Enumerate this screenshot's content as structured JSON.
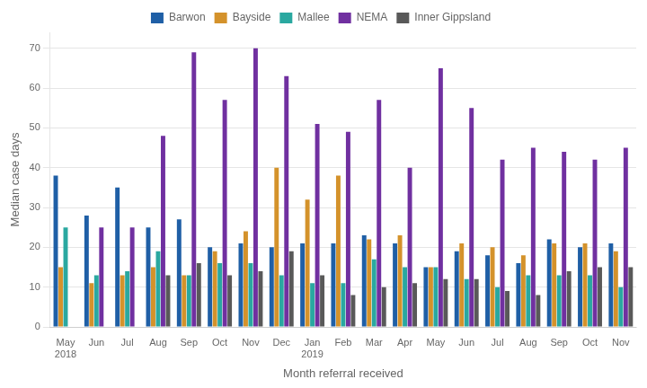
{
  "chart_data": {
    "type": "bar",
    "categories": [
      "May\n2018",
      "Jun",
      "Jul",
      "Aug",
      "Sep",
      "Oct",
      "Nov",
      "Dec",
      "Jan\n2019",
      "Feb",
      "Mar",
      "Apr",
      "May",
      "Jun",
      "Jul",
      "Aug",
      "Sep",
      "Oct",
      "Nov"
    ],
    "series": [
      {
        "name": "Barwon",
        "color": "#1f5fa6",
        "values": [
          38,
          28,
          35,
          25,
          27,
          20,
          21,
          20,
          21,
          21,
          23,
          21,
          15,
          19,
          18,
          16,
          22,
          20,
          21
        ]
      },
      {
        "name": "Bayside",
        "color": "#d4922b",
        "values": [
          15,
          11,
          13,
          15,
          13,
          19,
          24,
          40,
          32,
          38,
          22,
          23,
          15,
          21,
          20,
          18,
          21,
          21,
          19
        ]
      },
      {
        "name": "Mallee",
        "color": "#2aa8a0",
        "values": [
          25,
          13,
          14,
          19,
          13,
          16,
          16,
          13,
          11,
          11,
          17,
          15,
          15,
          12,
          10,
          13,
          13,
          13,
          10
        ]
      },
      {
        "name": "NEMA",
        "color": "#7030a0",
        "values": [
          null,
          25,
          25,
          48,
          69,
          57,
          70,
          63,
          51,
          49,
          57,
          40,
          65,
          55,
          42,
          45,
          44,
          42,
          45
        ]
      },
      {
        "name": "Inner Gippsland",
        "color": "#595959",
        "values": [
          null,
          null,
          null,
          13,
          16,
          13,
          14,
          19,
          13,
          8,
          10,
          11,
          12,
          12,
          9,
          8,
          14,
          15,
          15
        ]
      }
    ],
    "xlabel": "Month referral received",
    "ylabel": "Median case days",
    "ylim": [
      0,
      74
    ],
    "yticks": [
      0,
      10,
      20,
      30,
      40,
      50,
      60,
      70
    ],
    "grid": true,
    "legend": "top"
  }
}
